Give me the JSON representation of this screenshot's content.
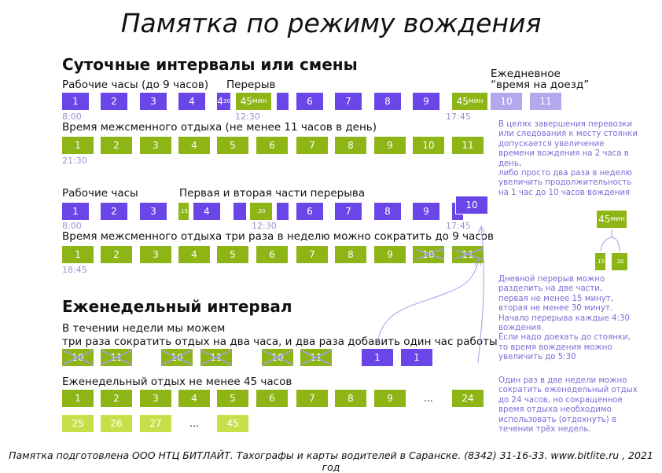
{
  "title": "Памятка по режиму вождения",
  "section1": {
    "heading": "Суточные интервалы или смены",
    "work_label": "Рабочие часы (до 9 часов)",
    "break_label": "Перерыв",
    "daily_label_1": "Ежедневное",
    "daily_label_2": "“время на доезд”",
    "row1": [
      "1",
      "2",
      "3",
      "4",
      "4",
      "30",
      "45",
      "мин",
      "6",
      "7",
      "8",
      "9",
      "45",
      "мин",
      "10",
      "11"
    ],
    "t_800": "8:00",
    "t_1230": "12:30",
    "t_1745": "17:45",
    "rest_label": "Время межсменного отдыха (не менее 11 часов в день)",
    "row2": [
      "1",
      "2",
      "3",
      "4",
      "5",
      "6",
      "7",
      "8",
      "9",
      "10",
      "11"
    ],
    "t_2130": "21:30",
    "note1": [
      "В целях завершения перевозки",
      "или следования к месту стоянки",
      "допускается увеличение",
      "времени вождения на 2 часа в",
      "день,",
      "либо просто два раза в неделю",
      "увеличить продолжительность",
      "на 1 час  до 10 часов вождения"
    ],
    "work_label2": "Рабочие часы",
    "split_label": "Первая  и вторая части перерыва",
    "row3": [
      "1",
      "2",
      "3",
      ".15",
      "4",
      ".30",
      "6",
      "7",
      "8",
      "9",
      "10"
    ],
    "t2_800": "8:00",
    "t2_1230": "12:30",
    "t2_1745": "17:45",
    "rest_label2": "Время межсменного отдыха три раза в неделю можно сократить до 9 часов",
    "row4": [
      "1",
      "2",
      "3",
      "4",
      "5",
      "6",
      "7",
      "8",
      "9",
      "10",
      "11"
    ],
    "t_1845": "18:45",
    "split_diagram": {
      "total": "45",
      "unit": "мин",
      "part1": ".15",
      "part2": ".30"
    },
    "note2": [
      "Дневной перерыв можно",
      "разделить на две части,",
      "первая не менее 15 минут,",
      "вторая не менее 30 минут.",
      "Начало перерыва каждые 4:30",
      "вождения.",
      "Если надо доехать до стоянки,",
      "то время вождения можно",
      "увеличить до 5:30"
    ]
  },
  "section2": {
    "heading": "Еженедельный интервал",
    "text1": "В течении недели мы можем",
    "text2": "три раза сократить отдых на два часа, и два раза добавить один час работы",
    "row5": [
      "10",
      "11",
      "10",
      "11",
      "10",
      "11",
      "1",
      "1"
    ],
    "weekly_label": "Еженедельный отдых не менее 45 часов",
    "row6": [
      "1",
      "2",
      "3",
      "4",
      "5",
      "6",
      "7",
      "8",
      "9",
      "...",
      "24"
    ],
    "row7": [
      "25",
      "26",
      "27",
      "...",
      "45"
    ],
    "note3": [
      "Один раз в две недели можно",
      "сократить еженедельный отдых",
      "до 24 часов, но сокращенное",
      "время отдыха необходимо",
      "использовать (отдохнуть) в",
      "течении трёх недель."
    ]
  },
  "footer": "Памятка подготовлена ООО НТЦ БИТЛАЙТ. Тахографы и карты водителей в Саранске. (8342) 31-16-33. www.bitlite.ru , 2021 год",
  "colors": {
    "green": "#8db515",
    "purple": "#6a46e8",
    "light_purple": "#b4a7ee",
    "light_green": "#c6e04a",
    "note": "#7f6bd6"
  }
}
